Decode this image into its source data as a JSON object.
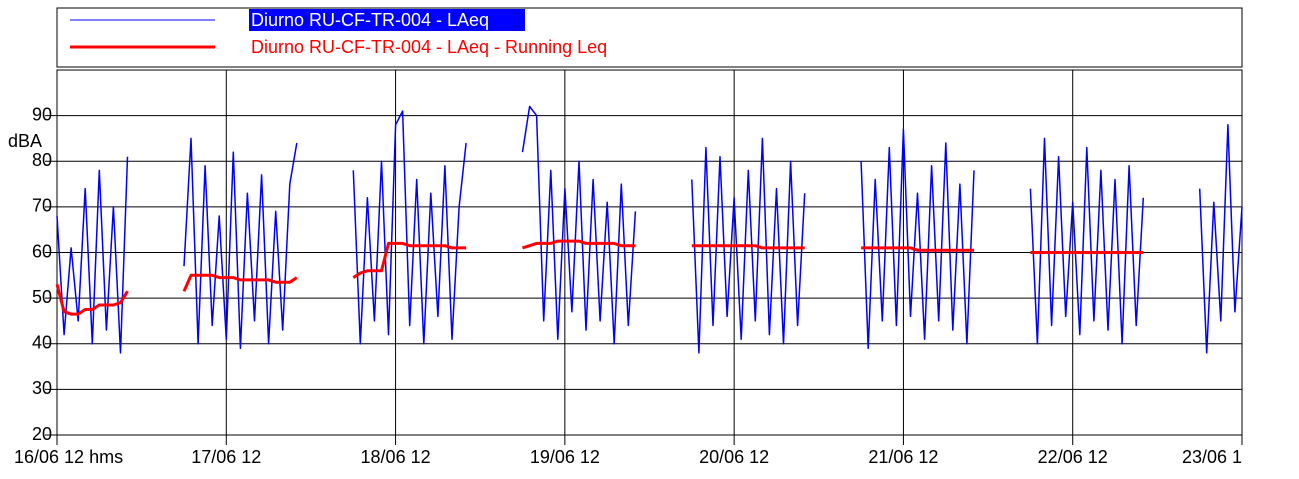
{
  "chart_data": {
    "type": "line",
    "ylabel": "dBA",
    "x": [
      "16/06 12:00",
      "16/06 13:00",
      "16/06 14:00",
      "16/06 15:00",
      "16/06 16:00",
      "16/06 17:00",
      "16/06 18:00",
      "16/06 19:00",
      "16/06 20:00",
      "16/06 21:00",
      "16/06 22:00",
      "17/06 02:00",
      "17/06 06:00",
      "17/06 07:00",
      "17/06 08:00",
      "17/06 09:00",
      "17/06 10:00",
      "17/06 11:00",
      "17/06 12:00",
      "17/06 13:00",
      "17/06 14:00",
      "17/06 15:00",
      "17/06 16:00",
      "17/06 17:00",
      "17/06 18:00",
      "17/06 19:00",
      "17/06 20:00",
      "17/06 21:00",
      "17/06 22:00",
      "18/06 02:00",
      "18/06 06:00",
      "18/06 07:00",
      "18/06 08:00",
      "18/06 09:00",
      "18/06 10:00",
      "18/06 11:00",
      "18/06 12:00",
      "18/06 13:00",
      "18/06 14:00",
      "18/06 15:00",
      "18/06 16:00",
      "18/06 17:00",
      "18/06 18:00",
      "18/06 19:00",
      "18/06 20:00",
      "18/06 21:00",
      "18/06 22:00",
      "19/06 02:00",
      "19/06 06:00",
      "19/06 07:00",
      "19/06 08:00",
      "19/06 09:00",
      "19/06 10:00",
      "19/06 11:00",
      "19/06 12:00",
      "19/06 13:00",
      "19/06 14:00",
      "19/06 15:00",
      "19/06 16:00",
      "19/06 17:00",
      "19/06 18:00",
      "19/06 19:00",
      "19/06 20:00",
      "19/06 21:00",
      "19/06 22:00",
      "20/06 02:00",
      "20/06 06:00",
      "20/06 07:00",
      "20/06 08:00",
      "20/06 09:00",
      "20/06 10:00",
      "20/06 11:00",
      "20/06 12:00",
      "20/06 13:00",
      "20/06 14:00",
      "20/06 15:00",
      "20/06 16:00",
      "20/06 17:00",
      "20/06 18:00",
      "20/06 19:00",
      "20/06 20:00",
      "20/06 21:00",
      "20/06 22:00",
      "21/06 02:00",
      "21/06 06:00",
      "21/06 07:00",
      "21/06 08:00",
      "21/06 09:00",
      "21/06 10:00",
      "21/06 11:00",
      "21/06 12:00",
      "21/06 13:00",
      "21/06 14:00",
      "21/06 15:00",
      "21/06 16:00",
      "21/06 17:00",
      "21/06 18:00",
      "21/06 19:00",
      "21/06 20:00",
      "21/06 21:00",
      "21/06 22:00",
      "22/06 02:00",
      "22/06 06:00",
      "22/06 07:00",
      "22/06 08:00",
      "22/06 09:00",
      "22/06 10:00",
      "22/06 11:00",
      "22/06 12:00",
      "22/06 13:00",
      "22/06 14:00",
      "22/06 15:00",
      "22/06 16:00",
      "22/06 17:00",
      "22/06 18:00",
      "22/06 19:00",
      "22/06 20:00",
      "22/06 21:00",
      "22/06 22:00",
      "23/06 02:00",
      "23/06 06:00",
      "23/06 07:00",
      "23/06 08:00",
      "23/06 09:00",
      "23/06 10:00",
      "23/06 11:00",
      "23/06 12:00"
    ],
    "series": [
      {
        "name": "Diurno RU-CF-TR-004 - LAeq",
        "color": "#0000ff",
        "values": [
          68,
          42,
          61,
          45,
          74,
          40,
          78,
          43,
          70,
          38,
          81,
          null,
          57,
          85,
          40,
          79,
          44,
          68,
          41,
          82,
          39,
          73,
          45,
          77,
          40,
          69,
          43,
          75,
          84,
          null,
          78,
          40,
          72,
          45,
          80,
          42,
          88,
          91,
          44,
          76,
          40,
          73,
          46,
          79,
          41,
          70,
          84,
          null,
          82,
          92,
          90,
          45,
          78,
          41,
          74,
          47,
          80,
          43,
          76,
          45,
          71,
          40,
          75,
          44,
          69,
          null,
          76,
          38,
          83,
          44,
          81,
          46,
          72,
          41,
          78,
          45,
          85,
          42,
          74,
          40,
          80,
          44,
          73,
          null,
          80,
          39,
          76,
          45,
          83,
          44,
          87,
          46,
          73,
          41,
          79,
          45,
          84,
          43,
          75,
          40,
          78,
          null,
          74,
          40,
          85,
          44,
          81,
          46,
          71,
          42,
          83,
          45,
          78,
          43,
          76,
          40,
          79,
          44,
          72,
          null,
          74,
          38,
          71,
          45,
          88,
          47,
          70
        ]
      },
      {
        "name": "Diurno RU-CF-TR-004 - LAeq - Running Leq",
        "color": "#ff0000",
        "values": [
          53,
          47,
          46.5,
          46.5,
          47.5,
          47.5,
          48.5,
          48.5,
          48.5,
          49,
          51.5,
          null,
          51.5,
          55,
          55,
          55,
          55,
          54.5,
          54.5,
          54.5,
          54,
          54,
          54,
          54,
          54,
          53.5,
          53.5,
          53.5,
          54.5,
          null,
          54.5,
          55.5,
          56,
          56,
          56,
          62,
          62,
          62,
          61.5,
          61.5,
          61.5,
          61.5,
          61.5,
          61.5,
          61,
          61,
          61,
          null,
          61,
          61.5,
          62,
          62,
          62,
          62.5,
          62.5,
          62.5,
          62.5,
          62,
          62,
          62,
          62,
          62,
          61.5,
          61.5,
          61.5,
          null,
          61.5,
          61.5,
          61.5,
          61.5,
          61.5,
          61.5,
          61.5,
          61.5,
          61.5,
          61.5,
          61,
          61,
          61,
          61,
          61,
          61,
          61,
          null,
          61,
          61,
          61,
          61,
          61,
          61,
          61,
          61,
          60.5,
          60.5,
          60.5,
          60.5,
          60.5,
          60.5,
          60.5,
          60.5,
          60.5,
          null,
          60,
          60,
          60,
          60,
          60,
          60,
          60,
          60,
          60,
          60,
          60,
          60,
          60,
          60,
          60,
          60,
          60,
          null,
          null,
          null,
          null,
          null,
          null,
          null,
          null
        ]
      }
    ],
    "xlim": [
      "16/06 12:00",
      "23/06 12:00"
    ],
    "xticks": [
      {
        "value": "16/06 12:00",
        "label": "16/06 12 hms"
      },
      {
        "value": "17/06 12:00",
        "label": "17/06 12"
      },
      {
        "value": "18/06 12:00",
        "label": "18/06 12"
      },
      {
        "value": "19/06 12:00",
        "label": "19/06 12"
      },
      {
        "value": "20/06 12:00",
        "label": "20/06 12"
      },
      {
        "value": "21/06 12:00",
        "label": "21/06 12"
      },
      {
        "value": "22/06 12:00",
        "label": "22/06 12"
      },
      {
        "value": "23/06 12:00",
        "label": "23/06 1"
      }
    ],
    "ylim": [
      20,
      100
    ],
    "yticks": [
      20,
      30,
      40,
      50,
      60,
      70,
      80,
      90
    ],
    "grid": true,
    "legend": "top"
  }
}
